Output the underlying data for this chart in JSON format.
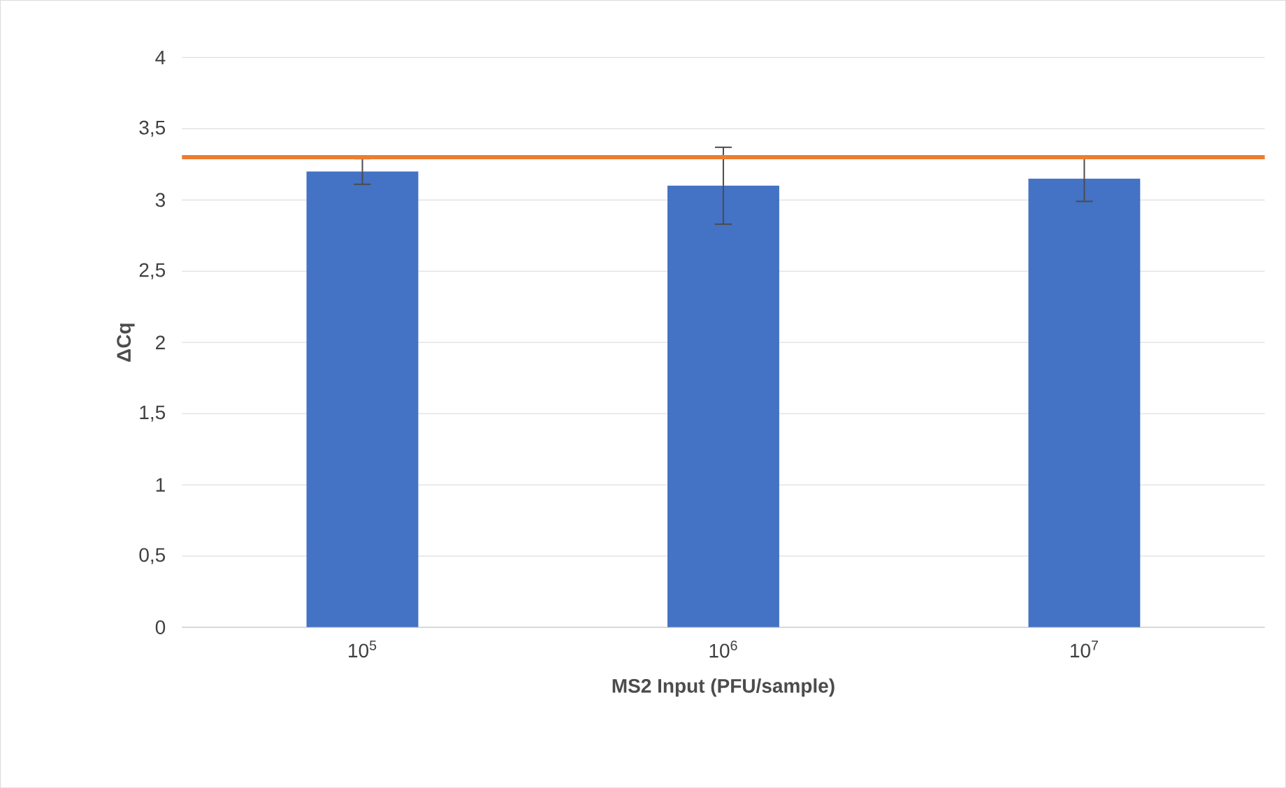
{
  "chart_data": {
    "type": "bar",
    "xlabel": "MS2 Input (PFU/sample)",
    "ylabel": "ΔCq",
    "categories": [
      "10$^{5}$",
      "10$^{6}$",
      "10$^{7}$"
    ],
    "values": [
      3.2,
      3.1,
      3.15
    ],
    "color": "#4472c4",
    "errors": [
      0.09,
      0.27,
      0.16
    ],
    "ylim": [
      0,
      4
    ],
    "yticks": [
      0,
      {
        "value": 0.5,
        "label": "0,5"
      },
      1,
      {
        "value": 1.5,
        "label": "1,5"
      },
      2,
      {
        "value": 2.5,
        "label": "2,5"
      },
      3,
      {
        "value": 3.5,
        "label": "3,5"
      },
      4
    ],
    "grid": "y",
    "ref_lines": [
      {
        "axis": "y",
        "value": 3.3,
        "color": "#ed7d31"
      }
    ]
  }
}
